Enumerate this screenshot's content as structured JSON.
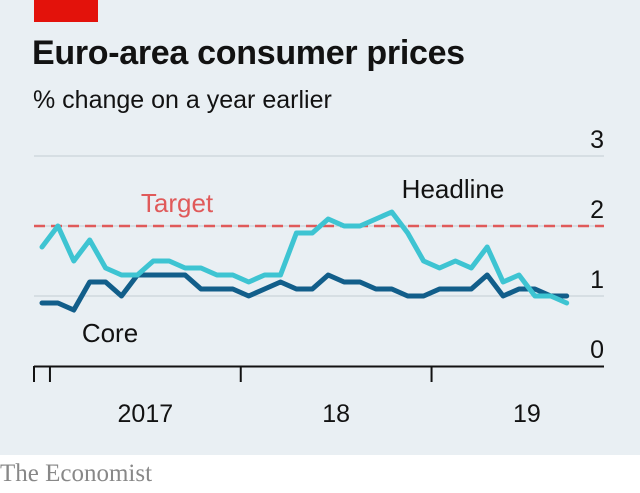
{
  "header": {
    "title": "Euro-area consumer prices",
    "subtitle": "% change on a year earlier"
  },
  "footer": {
    "source": "The Economist"
  },
  "colors": {
    "background": "#e9eff3",
    "accent_red": "#e3120b",
    "target": "#e05a5a",
    "headline": "#3ec4d2",
    "core": "#125e8a",
    "text": "#121212",
    "source": "#888888"
  },
  "chart_data": {
    "type": "line",
    "title": "Euro-area consumer prices",
    "subtitle": "% change on a year earlier",
    "ylim": [
      0,
      3
    ],
    "yticks": [
      "3",
      "2",
      "1",
      "0"
    ],
    "y_axis_side": "right",
    "grid": true,
    "x_tick_labels": [
      "2017",
      "18",
      "19"
    ],
    "x": [
      "2016-12",
      "2017-01",
      "2017-02",
      "2017-03",
      "2017-04",
      "2017-05",
      "2017-06",
      "2017-07",
      "2017-08",
      "2017-09",
      "2017-10",
      "2017-11",
      "2017-12",
      "2018-01",
      "2018-02",
      "2018-03",
      "2018-04",
      "2018-05",
      "2018-06",
      "2018-07",
      "2018-08",
      "2018-09",
      "2018-10",
      "2018-11",
      "2018-12",
      "2019-01",
      "2019-02",
      "2019-03",
      "2019-04",
      "2019-05",
      "2019-06",
      "2019-07",
      "2019-08",
      "2019-09"
    ],
    "series": [
      {
        "name": "Headline",
        "color": "#3ec4d2",
        "values": [
          1.7,
          2.0,
          1.5,
          1.8,
          1.4,
          1.3,
          1.3,
          1.5,
          1.5,
          1.4,
          1.4,
          1.3,
          1.3,
          1.2,
          1.3,
          1.3,
          1.9,
          1.9,
          2.1,
          2.0,
          2.0,
          2.1,
          2.2,
          1.9,
          1.5,
          1.4,
          1.5,
          1.4,
          1.7,
          1.2,
          1.3,
          1.0,
          1.0,
          0.9
        ]
      },
      {
        "name": "Core",
        "color": "#125e8a",
        "values": [
          0.9,
          0.9,
          0.8,
          1.2,
          1.2,
          1.0,
          1.3,
          1.3,
          1.3,
          1.3,
          1.1,
          1.1,
          1.1,
          1.0,
          1.1,
          1.2,
          1.1,
          1.1,
          1.3,
          1.2,
          1.2,
          1.1,
          1.1,
          1.0,
          1.0,
          1.1,
          1.1,
          1.1,
          1.3,
          1.0,
          1.1,
          1.1,
          1.0,
          1.0
        ]
      }
    ],
    "target": {
      "label": "Target",
      "value": 2.0
    },
    "annotations": [
      {
        "text": "Target",
        "series": "Target"
      },
      {
        "text": "Headline",
        "series": "Headline"
      },
      {
        "text": "Core",
        "series": "Core"
      }
    ]
  }
}
